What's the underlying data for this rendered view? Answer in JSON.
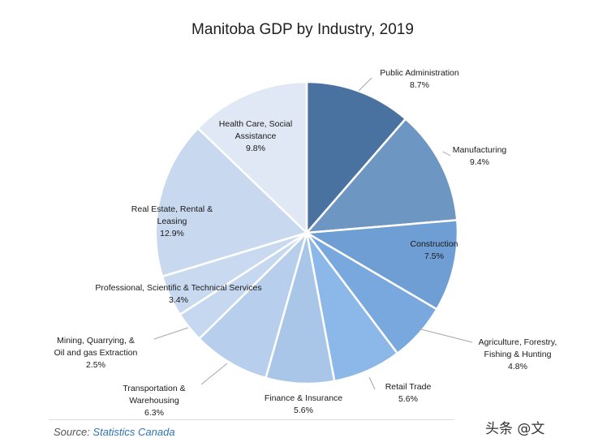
{
  "chart_data": {
    "type": "pie",
    "title": "Manitoba GDP by Industry, 2019",
    "unit": "%",
    "slices": [
      {
        "name": "Public Administration",
        "lines": [
          "Public Administration"
        ],
        "value": 8.7,
        "value_label": "8.7%",
        "color": "#4a72a0"
      },
      {
        "name": "Manufacturing",
        "lines": [
          "Manufacturing"
        ],
        "value": 9.4,
        "value_label": "9.4%",
        "color": "#6e96c2"
      },
      {
        "name": "Construction",
        "lines": [
          "Construction"
        ],
        "value": 7.5,
        "value_label": "7.5%",
        "color": "#6f9ed4"
      },
      {
        "name": "Agriculture, Forestry, Fishing & Hunting",
        "lines": [
          "Agriculture, Forestry,",
          "Fishing & Hunting"
        ],
        "value": 4.8,
        "value_label": "4.8%",
        "color": "#79a8de"
      },
      {
        "name": "Retail Trade",
        "lines": [
          "Retail Trade"
        ],
        "value": 5.6,
        "value_label": "5.6%",
        "color": "#8bb8e8"
      },
      {
        "name": "Finance & Insurance",
        "lines": [
          "Finance & Insurance"
        ],
        "value": 5.6,
        "value_label": "5.6%",
        "color": "#a9c6e8"
      },
      {
        "name": "Transportation & Warehousing",
        "lines": [
          "Transportation &",
          "Warehousing"
        ],
        "value": 6.3,
        "value_label": "6.3%",
        "color": "#b7cfec"
      },
      {
        "name": "Mining, Quarrying, & Oil and gas Extraction",
        "lines": [
          "Mining, Quarrying, &",
          "Oil and gas Extraction"
        ],
        "value": 2.5,
        "value_label": "2.5%",
        "color": "#c6d8f0"
      },
      {
        "name": "Professional, Scientific & Technical Services",
        "lines": [
          "Professional, Scientific & Technical Services"
        ],
        "value": 3.4,
        "value_label": "3.4%",
        "color": "#c9daf0"
      },
      {
        "name": "Real Estate, Rental & Leasing",
        "lines": [
          "Real Estate, Rental &",
          "Leasing"
        ],
        "value": 12.9,
        "value_label": "12.9%",
        "color": "#c8d8ee"
      },
      {
        "name": "Health Care, Social Assistance",
        "lines": [
          "Health Care, Social",
          "Assistance"
        ],
        "value": 9.8,
        "value_label": "9.8%",
        "color": "#dfe8f4"
      }
    ]
  },
  "source": {
    "prefix": "Source: ",
    "name": "Statistics Canada"
  },
  "watermark": "头条 @文"
}
